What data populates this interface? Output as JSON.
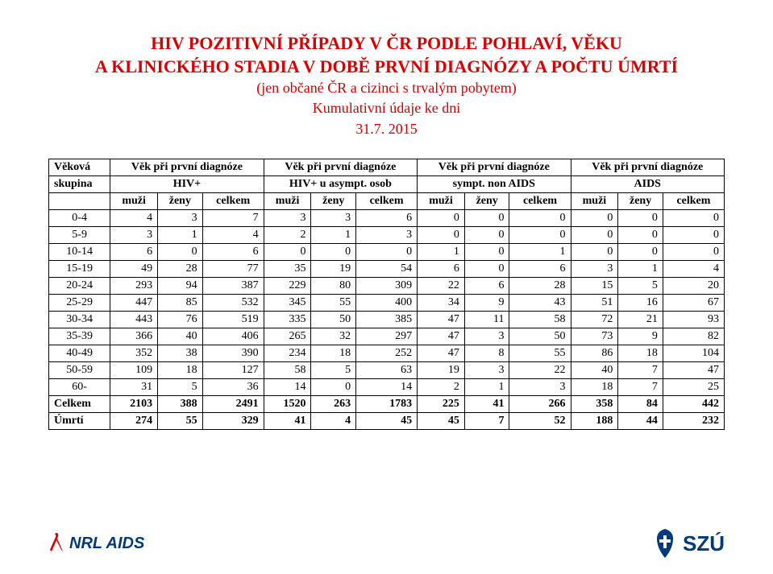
{
  "title": {
    "line1": "HIV POZITIVNÍ PŘÍPADY V ČR PODLE POHLAVÍ, VĚKU",
    "line2": "A KLINICKÉHO STADIA V DOBĚ PRVNÍ DIAGNÓZY A POČTU ÚMRTÍ",
    "sub1": "(jen občané ČR a cizinci s trvalým pobytem)",
    "sub2": "Kumulativní údaje ke dni",
    "sub3": "31.7. 2015"
  },
  "table": {
    "header_top": {
      "c0": "Věková",
      "g1": "Věk při první diagnóze",
      "g2": "Věk při první diagnóze",
      "g3": "Věk při první diagnóze",
      "g4": "Věk při první diagnóze"
    },
    "header_mid": {
      "c0": "skupina",
      "g1": "HIV+",
      "g2": "HIV+ u asympt. osob",
      "g3": "sympt. non AIDS",
      "g4": "AIDS"
    },
    "subcols": [
      "muži",
      "ženy",
      "celkem"
    ],
    "rows": [
      {
        "label": "0-4",
        "v": [
          4,
          3,
          7,
          3,
          3,
          6,
          0,
          0,
          0,
          0,
          0,
          0
        ]
      },
      {
        "label": "5-9",
        "v": [
          3,
          1,
          4,
          2,
          1,
          3,
          0,
          0,
          0,
          0,
          0,
          0
        ]
      },
      {
        "label": "10-14",
        "v": [
          6,
          0,
          6,
          0,
          0,
          0,
          1,
          0,
          1,
          0,
          0,
          0
        ]
      },
      {
        "label": "15-19",
        "v": [
          49,
          28,
          77,
          35,
          19,
          54,
          6,
          0,
          6,
          3,
          1,
          4
        ]
      },
      {
        "label": "20-24",
        "v": [
          293,
          94,
          387,
          229,
          80,
          309,
          22,
          6,
          28,
          15,
          5,
          20
        ]
      },
      {
        "label": "25-29",
        "v": [
          447,
          85,
          532,
          345,
          55,
          400,
          34,
          9,
          43,
          51,
          16,
          67
        ]
      },
      {
        "label": "30-34",
        "v": [
          443,
          76,
          519,
          335,
          50,
          385,
          47,
          11,
          58,
          72,
          21,
          93
        ]
      },
      {
        "label": "35-39",
        "v": [
          366,
          40,
          406,
          265,
          32,
          297,
          47,
          3,
          50,
          73,
          9,
          82
        ]
      },
      {
        "label": "40-49",
        "v": [
          352,
          38,
          390,
          234,
          18,
          252,
          47,
          8,
          55,
          86,
          18,
          104
        ]
      },
      {
        "label": "50-59",
        "v": [
          109,
          18,
          127,
          58,
          5,
          63,
          19,
          3,
          22,
          40,
          7,
          47
        ]
      },
      {
        "label": "60-",
        "v": [
          31,
          5,
          36,
          14,
          0,
          14,
          2,
          1,
          3,
          18,
          7,
          25
        ]
      }
    ],
    "total": {
      "label": "Celkem",
      "v": [
        2103,
        388,
        2491,
        1520,
        263,
        1783,
        225,
        41,
        266,
        358,
        84,
        442
      ]
    },
    "deaths": {
      "label": "Úmrtí",
      "v": [
        274,
        55,
        329,
        41,
        4,
        45,
        45,
        7,
        52,
        188,
        44,
        232
      ]
    }
  },
  "footer": {
    "nrl": "NRL AIDS",
    "szu": "SZÚ",
    "ribbon_color": "#d80000",
    "logo_color": "#003a7a"
  }
}
